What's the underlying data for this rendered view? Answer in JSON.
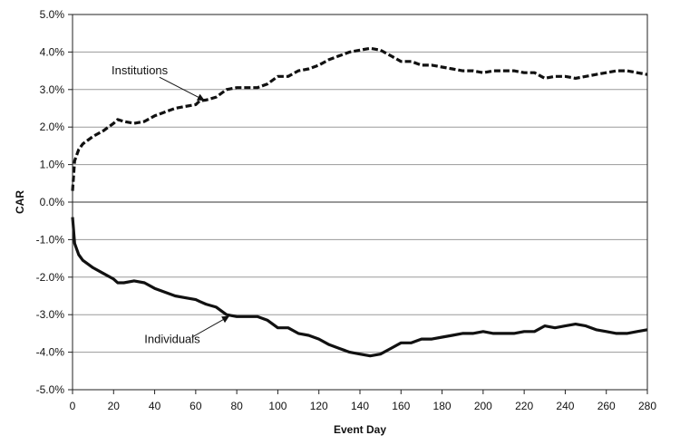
{
  "chart_data": {
    "type": "line",
    "title": "",
    "xlabel": "Event Day",
    "ylabel": "CAR",
    "xlim": [
      0,
      280
    ],
    "ylim": [
      -5.0,
      5.0
    ],
    "x_ticks": [
      0,
      20,
      40,
      60,
      80,
      100,
      120,
      140,
      160,
      180,
      200,
      220,
      240,
      260,
      280
    ],
    "y_ticks": [
      -5.0,
      -4.0,
      -3.0,
      -2.0,
      -1.0,
      0.0,
      1.0,
      2.0,
      3.0,
      4.0,
      5.0
    ],
    "x_tick_labels": [
      "0",
      "20",
      "40",
      "60",
      "80",
      "100",
      "120",
      "140",
      "160",
      "180",
      "200",
      "220",
      "240",
      "260",
      "280"
    ],
    "y_tick_labels": [
      "-5.0%",
      "-4.0%",
      "-3.0%",
      "-2.0%",
      "-1.0%",
      "0.0%",
      "1.0%",
      "2.0%",
      "3.0%",
      "4.0%",
      "5.0%"
    ],
    "grid": "horizontal",
    "legend": "none",
    "series": [
      {
        "name": "Institutions",
        "style": "dashed",
        "color": "#111111",
        "points": [
          [
            0,
            0.3
          ],
          [
            1,
            1.1
          ],
          [
            3,
            1.4
          ],
          [
            5,
            1.55
          ],
          [
            10,
            1.75
          ],
          [
            15,
            1.9
          ],
          [
            20,
            2.1
          ],
          [
            22,
            2.2
          ],
          [
            25,
            2.15
          ],
          [
            30,
            2.1
          ],
          [
            35,
            2.15
          ],
          [
            40,
            2.3
          ],
          [
            45,
            2.4
          ],
          [
            50,
            2.5
          ],
          [
            55,
            2.55
          ],
          [
            60,
            2.6
          ],
          [
            62,
            2.7
          ],
          [
            65,
            2.72
          ],
          [
            70,
            2.8
          ],
          [
            75,
            3.0
          ],
          [
            80,
            3.05
          ],
          [
            85,
            3.05
          ],
          [
            90,
            3.05
          ],
          [
            95,
            3.15
          ],
          [
            100,
            3.35
          ],
          [
            105,
            3.35
          ],
          [
            110,
            3.5
          ],
          [
            115,
            3.55
          ],
          [
            120,
            3.65
          ],
          [
            125,
            3.8
          ],
          [
            130,
            3.9
          ],
          [
            135,
            4.0
          ],
          [
            140,
            4.05
          ],
          [
            145,
            4.1
          ],
          [
            150,
            4.05
          ],
          [
            155,
            3.9
          ],
          [
            160,
            3.75
          ],
          [
            165,
            3.75
          ],
          [
            170,
            3.65
          ],
          [
            175,
            3.65
          ],
          [
            180,
            3.6
          ],
          [
            185,
            3.55
          ],
          [
            190,
            3.5
          ],
          [
            195,
            3.5
          ],
          [
            200,
            3.45
          ],
          [
            205,
            3.5
          ],
          [
            210,
            3.5
          ],
          [
            215,
            3.5
          ],
          [
            220,
            3.45
          ],
          [
            225,
            3.45
          ],
          [
            230,
            3.3
          ],
          [
            235,
            3.35
          ],
          [
            240,
            3.35
          ],
          [
            245,
            3.3
          ],
          [
            250,
            3.35
          ],
          [
            255,
            3.4
          ],
          [
            260,
            3.45
          ],
          [
            265,
            3.5
          ],
          [
            270,
            3.5
          ],
          [
            275,
            3.45
          ],
          [
            280,
            3.4
          ]
        ]
      },
      {
        "name": "Individuals",
        "style": "solid",
        "color": "#111111",
        "points": [
          [
            0,
            -0.4
          ],
          [
            1,
            -1.1
          ],
          [
            3,
            -1.4
          ],
          [
            5,
            -1.55
          ],
          [
            10,
            -1.75
          ],
          [
            15,
            -1.9
          ],
          [
            20,
            -2.05
          ],
          [
            22,
            -2.15
          ],
          [
            25,
            -2.15
          ],
          [
            30,
            -2.1
          ],
          [
            35,
            -2.15
          ],
          [
            40,
            -2.3
          ],
          [
            45,
            -2.4
          ],
          [
            50,
            -2.5
          ],
          [
            55,
            -2.55
          ],
          [
            60,
            -2.6
          ],
          [
            62,
            -2.65
          ],
          [
            65,
            -2.72
          ],
          [
            70,
            -2.8
          ],
          [
            75,
            -3.0
          ],
          [
            80,
            -3.05
          ],
          [
            85,
            -3.05
          ],
          [
            90,
            -3.05
          ],
          [
            95,
            -3.15
          ],
          [
            100,
            -3.35
          ],
          [
            105,
            -3.35
          ],
          [
            110,
            -3.5
          ],
          [
            115,
            -3.55
          ],
          [
            120,
            -3.65
          ],
          [
            125,
            -3.8
          ],
          [
            130,
            -3.9
          ],
          [
            135,
            -4.0
          ],
          [
            140,
            -4.05
          ],
          [
            145,
            -4.1
          ],
          [
            150,
            -4.05
          ],
          [
            155,
            -3.9
          ],
          [
            160,
            -3.75
          ],
          [
            165,
            -3.75
          ],
          [
            170,
            -3.65
          ],
          [
            175,
            -3.65
          ],
          [
            180,
            -3.6
          ],
          [
            185,
            -3.55
          ],
          [
            190,
            -3.5
          ],
          [
            195,
            -3.5
          ],
          [
            200,
            -3.45
          ],
          [
            205,
            -3.5
          ],
          [
            210,
            -3.5
          ],
          [
            215,
            -3.5
          ],
          [
            220,
            -3.45
          ],
          [
            225,
            -3.45
          ],
          [
            230,
            -3.3
          ],
          [
            235,
            -3.35
          ],
          [
            240,
            -3.3
          ],
          [
            245,
            -3.25
          ],
          [
            250,
            -3.3
          ],
          [
            255,
            -3.4
          ],
          [
            260,
            -3.45
          ],
          [
            265,
            -3.5
          ],
          [
            270,
            -3.5
          ],
          [
            275,
            -3.45
          ],
          [
            280,
            -3.4
          ]
        ]
      }
    ],
    "annotations": [
      {
        "text": "Institutions",
        "label_at": [
          19,
          3.4
        ],
        "arrow_to": [
          64,
          2.72
        ]
      },
      {
        "text": "Individuals",
        "label_at": [
          35,
          -3.75
        ],
        "arrow_to": [
          76,
          -3.05
        ]
      }
    ]
  }
}
